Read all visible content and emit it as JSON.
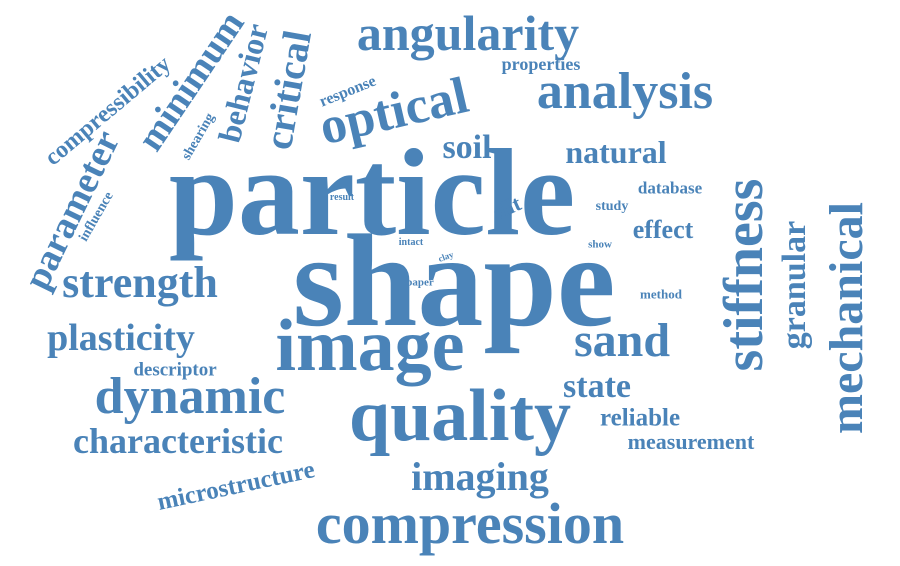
{
  "theme": {
    "word_color": "#4a83b8",
    "background": "#ffffff"
  },
  "words": [
    {
      "key": "particle",
      "text": "particle"
    },
    {
      "key": "shape",
      "text": "shape"
    },
    {
      "key": "image",
      "text": "image"
    },
    {
      "key": "quality",
      "text": "quality"
    },
    {
      "key": "compression",
      "text": "compression"
    },
    {
      "key": "angularity",
      "text": "angularity"
    },
    {
      "key": "analysis",
      "text": "analysis"
    },
    {
      "key": "optical",
      "text": "optical"
    },
    {
      "key": "stiffness",
      "text": "stiffness"
    },
    {
      "key": "mechanical",
      "text": "mechanical"
    },
    {
      "key": "granular",
      "text": "granular"
    },
    {
      "key": "sand",
      "text": "sand"
    },
    {
      "key": "dynamic",
      "text": "dynamic"
    },
    {
      "key": "strength",
      "text": "strength"
    },
    {
      "key": "plasticity",
      "text": "plasticity"
    },
    {
      "key": "characteristic",
      "text": "characteristic"
    },
    {
      "key": "imaging",
      "text": "imaging"
    },
    {
      "key": "parameter",
      "text": "parameter"
    },
    {
      "key": "critical",
      "text": "critical"
    },
    {
      "key": "minimum",
      "text": "minimum"
    },
    {
      "key": "behavior",
      "text": "behavior"
    },
    {
      "key": "compressibility",
      "text": "compressibility"
    },
    {
      "key": "natural",
      "text": "natural"
    },
    {
      "key": "soil",
      "text": "soil"
    },
    {
      "key": "state",
      "text": "state"
    },
    {
      "key": "microstructure",
      "text": "microstructure"
    },
    {
      "key": "measurement",
      "text": "measurement"
    },
    {
      "key": "reliable",
      "text": "reliable"
    },
    {
      "key": "effect",
      "text": "effect"
    },
    {
      "key": "properties",
      "text": "properties"
    },
    {
      "key": "silt",
      "text": "silt"
    },
    {
      "key": "descriptor",
      "text": "descriptor"
    },
    {
      "key": "database",
      "text": "database"
    },
    {
      "key": "study",
      "text": "study"
    },
    {
      "key": "response",
      "text": "response"
    },
    {
      "key": "shearing",
      "text": "shearing"
    },
    {
      "key": "influence",
      "text": "influence"
    },
    {
      "key": "result",
      "text": "result"
    },
    {
      "key": "intact",
      "text": "intact"
    },
    {
      "key": "clay",
      "text": "clay"
    },
    {
      "key": "paper",
      "text": "paper"
    },
    {
      "key": "show",
      "text": "show"
    },
    {
      "key": "method",
      "text": "method"
    }
  ]
}
